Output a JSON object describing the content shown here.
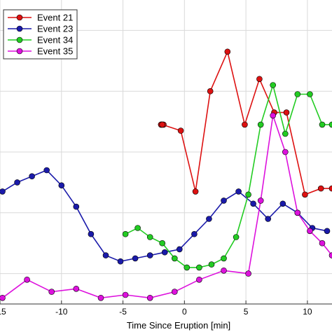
{
  "chart_data": {
    "type": "line",
    "title": "",
    "xlabel": "Time Since Eruption [min]",
    "ylabel": "",
    "xlim": [
      -15,
      12
    ],
    "ylim": [
      0,
      1
    ],
    "xticks": [
      -15,
      -10,
      -5,
      0,
      5,
      10
    ],
    "xtick_labels": [
      "-15",
      "-10",
      "-5",
      "0",
      "5",
      "10"
    ],
    "ygrid": [
      0.1,
      0.3,
      0.5,
      0.7,
      0.9
    ],
    "grid": true,
    "legend": "top-left",
    "series": [
      {
        "name": "Event 21",
        "color": "#dd1111",
        "x": [
          -1.8,
          -1.9,
          -1.9,
          -1.7,
          -1.8,
          -0.3,
          0.9,
          2.1,
          3.5,
          4.9,
          6.1,
          7.3,
          8.3,
          9.8,
          11.1,
          12.0
        ],
        "y": [
          0.59,
          0.59,
          0.59,
          0.59,
          0.59,
          0.57,
          0.37,
          0.7,
          0.83,
          0.59,
          0.74,
          0.63,
          0.63,
          0.36,
          0.38,
          0.38
        ]
      },
      {
        "name": "Event 23",
        "color": "#1a1aaa",
        "x": [
          -14.8,
          -13.6,
          -12.4,
          -11.2,
          -10.0,
          -8.8,
          -7.6,
          -6.4,
          -5.2,
          -4.0,
          -2.8,
          -1.6,
          -0.4,
          0.8,
          2.0,
          3.2,
          4.4,
          5.6,
          6.8,
          8.0,
          9.2,
          10.4,
          11.6
        ],
        "y": [
          0.37,
          0.4,
          0.42,
          0.44,
          0.39,
          0.32,
          0.23,
          0.16,
          0.14,
          0.15,
          0.16,
          0.17,
          0.18,
          0.23,
          0.28,
          0.34,
          0.37,
          0.33,
          0.28,
          0.33,
          0.3,
          0.25,
          0.24
        ]
      },
      {
        "name": "Event 34",
        "color": "#22cc22",
        "x": [
          -4.8,
          -3.8,
          -2.8,
          -1.8,
          -0.8,
          0.2,
          1.2,
          2.2,
          3.2,
          4.2,
          5.2,
          6.2,
          7.2,
          8.2,
          9.2,
          10.2,
          11.2,
          12.0
        ],
        "y": [
          0.23,
          0.25,
          0.22,
          0.2,
          0.15,
          0.12,
          0.12,
          0.13,
          0.15,
          0.22,
          0.36,
          0.59,
          0.72,
          0.56,
          0.69,
          0.69,
          0.59,
          0.59
        ]
      },
      {
        "name": "Event 35",
        "color": "#dd11dd",
        "x": [
          -14.8,
          -12.8,
          -10.8,
          -8.8,
          -6.8,
          -4.8,
          -2.8,
          -0.8,
          1.2,
          3.2,
          5.2,
          6.2,
          7.2,
          8.2,
          9.2,
          10.2,
          11.2,
          12.0
        ],
        "y": [
          0.02,
          0.08,
          0.04,
          0.05,
          0.02,
          0.03,
          0.02,
          0.04,
          0.08,
          0.11,
          0.1,
          0.34,
          0.62,
          0.5,
          0.3,
          0.24,
          0.2,
          0.16
        ]
      }
    ]
  }
}
